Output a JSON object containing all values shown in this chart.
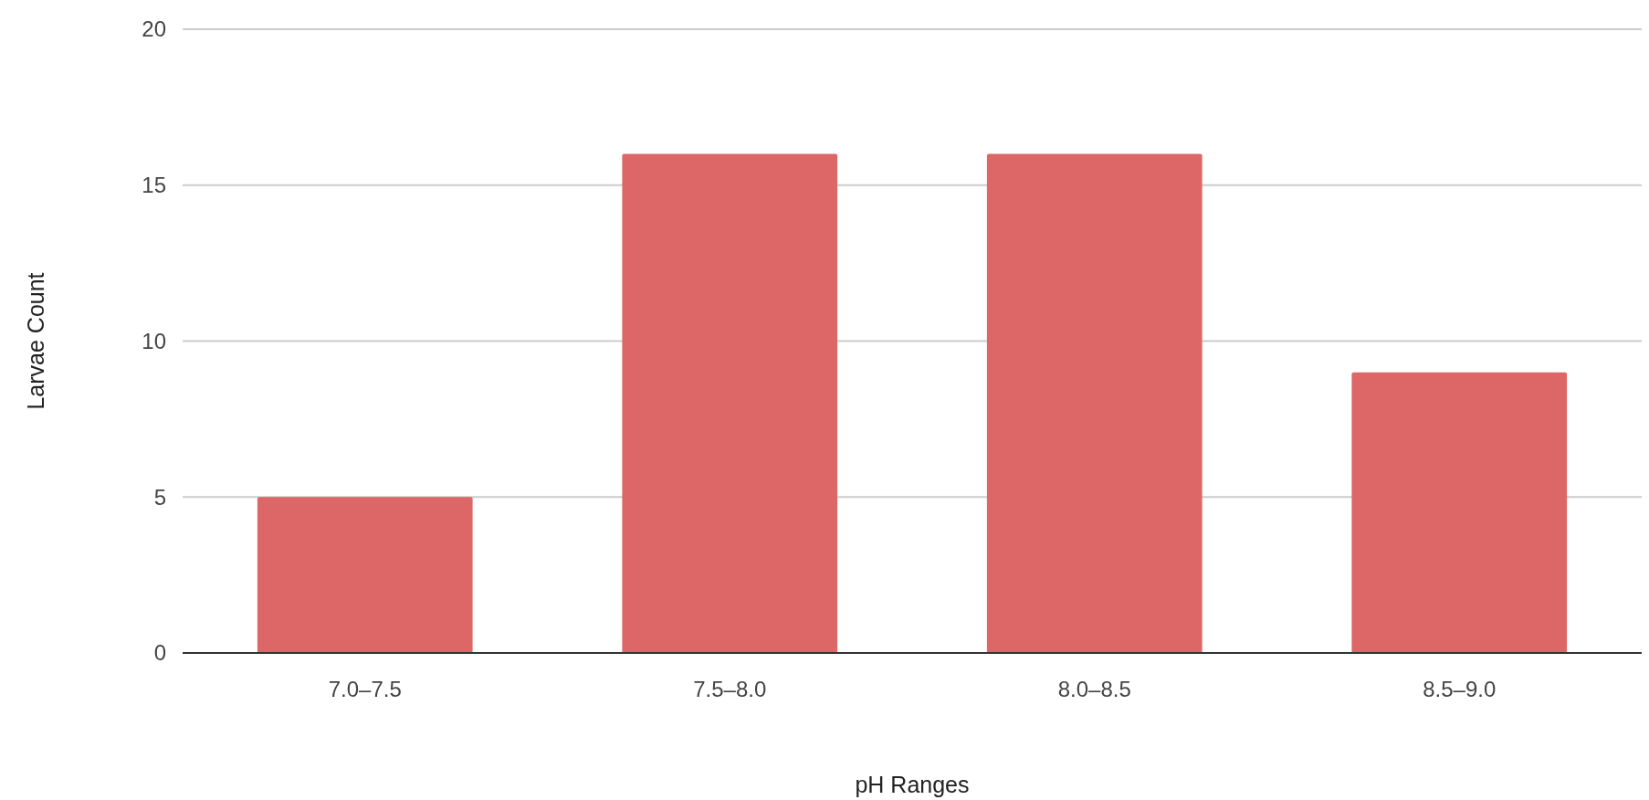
{
  "chart_data": {
    "type": "bar",
    "xlabel": "pH Ranges",
    "ylabel": "Larvae Count",
    "categories": [
      "7.0–7.5",
      "7.5–8.0",
      "8.0–8.5",
      "8.5–9.0"
    ],
    "values": [
      5,
      16,
      16,
      9
    ],
    "color": "#dd6666",
    "ylim": [
      0,
      20
    ],
    "yticks": [
      0,
      5,
      10,
      15,
      20
    ],
    "grid": "y"
  }
}
